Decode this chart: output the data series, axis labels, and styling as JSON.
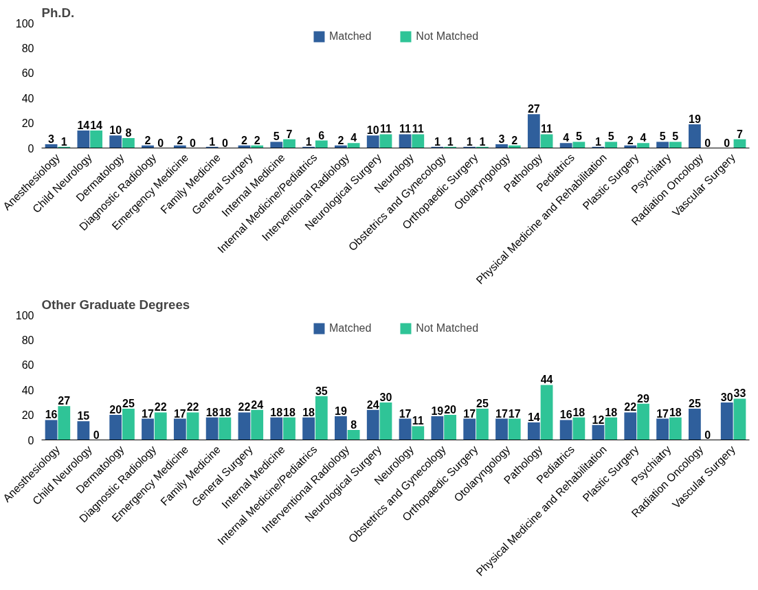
{
  "chart_data": [
    {
      "type": "bar",
      "title": "Ph.D.",
      "categories": [
        "Anesthesiology",
        "Child Neurology",
        "Dermatology",
        "Diagnostic Radiology",
        "Emergency Medicine",
        "Family Medicine",
        "General Surgery",
        "Internal Medicine",
        "Internal Medicine/Pediatrics",
        "Interventional Radiology",
        "Neurological Surgery",
        "Neurology",
        "Obstetrics and Gynecology",
        "Orthopaedic Surgery",
        "Otolaryngology",
        "Pathology",
        "Pediatrics",
        "Physical Medicine and Rehabilitation",
        "Plastic Surgery",
        "Psychiatry",
        "Radiation Oncology",
        "Vascular Surgery"
      ],
      "series": [
        {
          "name": "Matched",
          "color": "#2f5f9c",
          "values": [
            3,
            14,
            10,
            2,
            2,
            1,
            2,
            5,
            1,
            2,
            10,
            11,
            1,
            1,
            3,
            27,
            4,
            1,
            2,
            5,
            19,
            0
          ]
        },
        {
          "name": "Not Matched",
          "color": "#2fc497",
          "values": [
            1,
            14,
            8,
            0,
            0,
            0,
            2,
            7,
            6,
            4,
            11,
            11,
            1,
            1,
            2,
            11,
            5,
            5,
            4,
            5,
            0,
            7
          ]
        }
      ],
      "ylim": [
        0,
        100
      ],
      "yticks": [
        0,
        20,
        40,
        60,
        80,
        100
      ],
      "grid": false,
      "legend": "top",
      "data_labels": true
    },
    {
      "type": "bar",
      "title": "Other Graduate Degrees",
      "categories": [
        "Anesthesiology",
        "Child Neurology",
        "Dermatology",
        "Diagnostic Radiology",
        "Emergency Medicine",
        "Family Medicine",
        "General Surgery",
        "Internal Medicine",
        "Internal Medicine/Pediatrics",
        "Interventional Radiology",
        "Neurological Surgery",
        "Neurology",
        "Obstetrics and Gynecology",
        "Orthopaedic Surgery",
        "Otolaryngology",
        "Pathology",
        "Pediatrics",
        "Physical Medicine and Rehabilitation",
        "Plastic Surgery",
        "Psychiatry",
        "Radiation Oncology",
        "Vascular Surgery"
      ],
      "series": [
        {
          "name": "Matched",
          "color": "#2f5f9c",
          "values": [
            16,
            15,
            20,
            17,
            17,
            18,
            22,
            18,
            18,
            19,
            24,
            17,
            19,
            17,
            17,
            14,
            16,
            12,
            22,
            17,
            25,
            30
          ]
        },
        {
          "name": "Not Matched",
          "color": "#2fc497",
          "values": [
            27,
            0,
            25,
            22,
            22,
            18,
            24,
            18,
            35,
            8,
            30,
            11,
            20,
            25,
            17,
            44,
            18,
            18,
            29,
            18,
            0,
            33
          ]
        }
      ],
      "ylim": [
        0,
        100
      ],
      "yticks": [
        0,
        20,
        40,
        60,
        80,
        100
      ],
      "grid": false,
      "legend": "top",
      "data_labels": true
    }
  ]
}
